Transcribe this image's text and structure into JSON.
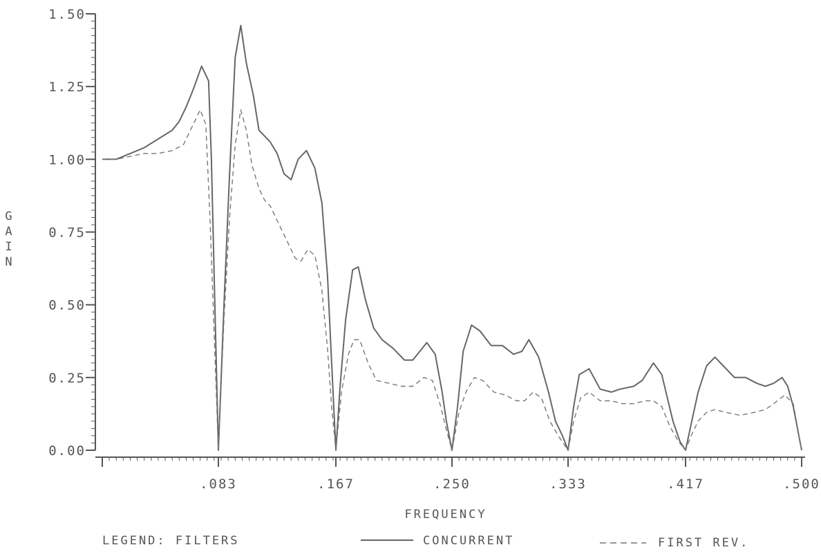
{
  "chart_data": {
    "type": "line",
    "xlabel": "FREQUENCY",
    "ylabel": "GAIN",
    "xlim": [
      0,
      0.5
    ],
    "ylim": [
      0,
      1.5
    ],
    "x_ticks": [
      {
        "value": 0.083,
        "label": ".083"
      },
      {
        "value": 0.167,
        "label": ".167"
      },
      {
        "value": 0.25,
        "label": ".250"
      },
      {
        "value": 0.333,
        "label": ".333"
      },
      {
        "value": 0.417,
        "label": ".417"
      },
      {
        "value": 0.5,
        "label": ".500"
      }
    ],
    "y_ticks": [
      {
        "value": 0.0,
        "label": "0.00"
      },
      {
        "value": 0.25,
        "label": "0.25"
      },
      {
        "value": 0.5,
        "label": "0.50"
      },
      {
        "value": 0.75,
        "label": "0.75"
      },
      {
        "value": 1.0,
        "label": "1.00"
      },
      {
        "value": 1.25,
        "label": "1.25"
      },
      {
        "value": 1.5,
        "label": "1.50"
      }
    ],
    "legend": {
      "title": "LEGEND: FILTERS",
      "placement": "bottom"
    },
    "series": [
      {
        "name": "CONCURRENT",
        "style": "solid",
        "color": "#666666",
        "points": [
          [
            0.0,
            1.0
          ],
          [
            0.01,
            1.0
          ],
          [
            0.02,
            1.02
          ],
          [
            0.03,
            1.04
          ],
          [
            0.04,
            1.07
          ],
          [
            0.05,
            1.1
          ],
          [
            0.055,
            1.13
          ],
          [
            0.06,
            1.18
          ],
          [
            0.065,
            1.24
          ],
          [
            0.071,
            1.32
          ],
          [
            0.076,
            1.27
          ],
          [
            0.078,
            1.0
          ],
          [
            0.08,
            0.6
          ],
          [
            0.083,
            0.0
          ],
          [
            0.087,
            0.5
          ],
          [
            0.091,
            0.95
          ],
          [
            0.095,
            1.35
          ],
          [
            0.099,
            1.46
          ],
          [
            0.103,
            1.33
          ],
          [
            0.108,
            1.22
          ],
          [
            0.112,
            1.1
          ],
          [
            0.116,
            1.08
          ],
          [
            0.12,
            1.06
          ],
          [
            0.125,
            1.02
          ],
          [
            0.13,
            0.95
          ],
          [
            0.135,
            0.93
          ],
          [
            0.14,
            1.0
          ],
          [
            0.146,
            1.03
          ],
          [
            0.152,
            0.97
          ],
          [
            0.157,
            0.85
          ],
          [
            0.161,
            0.6
          ],
          [
            0.164,
            0.3
          ],
          [
            0.167,
            0.0
          ],
          [
            0.17,
            0.22
          ],
          [
            0.174,
            0.45
          ],
          [
            0.179,
            0.62
          ],
          [
            0.183,
            0.63
          ],
          [
            0.188,
            0.52
          ],
          [
            0.194,
            0.42
          ],
          [
            0.2,
            0.38
          ],
          [
            0.208,
            0.35
          ],
          [
            0.216,
            0.31
          ],
          [
            0.222,
            0.31
          ],
          [
            0.232,
            0.37
          ],
          [
            0.238,
            0.33
          ],
          [
            0.243,
            0.2
          ],
          [
            0.246,
            0.1
          ],
          [
            0.25,
            0.0
          ],
          [
            0.254,
            0.15
          ],
          [
            0.258,
            0.34
          ],
          [
            0.264,
            0.43
          ],
          [
            0.27,
            0.41
          ],
          [
            0.278,
            0.36
          ],
          [
            0.286,
            0.36
          ],
          [
            0.294,
            0.33
          ],
          [
            0.3,
            0.34
          ],
          [
            0.305,
            0.38
          ],
          [
            0.312,
            0.32
          ],
          [
            0.319,
            0.2
          ],
          [
            0.324,
            0.1
          ],
          [
            0.329,
            0.05
          ],
          [
            0.333,
            0.0
          ],
          [
            0.337,
            0.15
          ],
          [
            0.341,
            0.26
          ],
          [
            0.348,
            0.28
          ],
          [
            0.356,
            0.21
          ],
          [
            0.364,
            0.2
          ],
          [
            0.37,
            0.21
          ],
          [
            0.38,
            0.22
          ],
          [
            0.386,
            0.24
          ],
          [
            0.394,
            0.3
          ],
          [
            0.4,
            0.26
          ],
          [
            0.404,
            0.18
          ],
          [
            0.408,
            0.1
          ],
          [
            0.413,
            0.03
          ],
          [
            0.417,
            0.0
          ],
          [
            0.421,
            0.09
          ],
          [
            0.426,
            0.2
          ],
          [
            0.432,
            0.29
          ],
          [
            0.438,
            0.32
          ],
          [
            0.444,
            0.29
          ],
          [
            0.452,
            0.25
          ],
          [
            0.46,
            0.25
          ],
          [
            0.468,
            0.23
          ],
          [
            0.474,
            0.22
          ],
          [
            0.48,
            0.23
          ],
          [
            0.486,
            0.25
          ],
          [
            0.49,
            0.22
          ],
          [
            0.494,
            0.15
          ],
          [
            0.5,
            0.0
          ]
        ]
      },
      {
        "name": "FIRST REV.",
        "style": "dashed",
        "color": "#777777",
        "points": [
          [
            0.0,
            1.0
          ],
          [
            0.01,
            1.0
          ],
          [
            0.02,
            1.01
          ],
          [
            0.03,
            1.02
          ],
          [
            0.04,
            1.02
          ],
          [
            0.05,
            1.03
          ],
          [
            0.058,
            1.05
          ],
          [
            0.065,
            1.12
          ],
          [
            0.07,
            1.17
          ],
          [
            0.074,
            1.12
          ],
          [
            0.077,
            0.8
          ],
          [
            0.08,
            0.4
          ],
          [
            0.083,
            0.0
          ],
          [
            0.087,
            0.45
          ],
          [
            0.091,
            0.8
          ],
          [
            0.095,
            1.05
          ],
          [
            0.099,
            1.17
          ],
          [
            0.103,
            1.1
          ],
          [
            0.107,
            0.98
          ],
          [
            0.112,
            0.9
          ],
          [
            0.116,
            0.86
          ],
          [
            0.12,
            0.84
          ],
          [
            0.126,
            0.78
          ],
          [
            0.132,
            0.72
          ],
          [
            0.138,
            0.66
          ],
          [
            0.142,
            0.65
          ],
          [
            0.147,
            0.69
          ],
          [
            0.152,
            0.67
          ],
          [
            0.157,
            0.55
          ],
          [
            0.161,
            0.35
          ],
          [
            0.164,
            0.15
          ],
          [
            0.167,
            0.0
          ],
          [
            0.171,
            0.2
          ],
          [
            0.176,
            0.33
          ],
          [
            0.18,
            0.38
          ],
          [
            0.184,
            0.38
          ],
          [
            0.19,
            0.3
          ],
          [
            0.196,
            0.24
          ],
          [
            0.205,
            0.23
          ],
          [
            0.214,
            0.22
          ],
          [
            0.222,
            0.22
          ],
          [
            0.23,
            0.25
          ],
          [
            0.236,
            0.24
          ],
          [
            0.242,
            0.15
          ],
          [
            0.246,
            0.07
          ],
          [
            0.25,
            0.0
          ],
          [
            0.255,
            0.13
          ],
          [
            0.26,
            0.2
          ],
          [
            0.266,
            0.25
          ],
          [
            0.272,
            0.24
          ],
          [
            0.28,
            0.2
          ],
          [
            0.288,
            0.19
          ],
          [
            0.296,
            0.17
          ],
          [
            0.302,
            0.17
          ],
          [
            0.308,
            0.2
          ],
          [
            0.314,
            0.18
          ],
          [
            0.32,
            0.1
          ],
          [
            0.326,
            0.05
          ],
          [
            0.333,
            0.0
          ],
          [
            0.337,
            0.1
          ],
          [
            0.342,
            0.18
          ],
          [
            0.348,
            0.2
          ],
          [
            0.356,
            0.17
          ],
          [
            0.364,
            0.17
          ],
          [
            0.372,
            0.16
          ],
          [
            0.38,
            0.16
          ],
          [
            0.388,
            0.17
          ],
          [
            0.394,
            0.17
          ],
          [
            0.4,
            0.15
          ],
          [
            0.406,
            0.08
          ],
          [
            0.412,
            0.03
          ],
          [
            0.417,
            0.0
          ],
          [
            0.421,
            0.05
          ],
          [
            0.426,
            0.1
          ],
          [
            0.432,
            0.13
          ],
          [
            0.438,
            0.14
          ],
          [
            0.446,
            0.13
          ],
          [
            0.456,
            0.12
          ],
          [
            0.466,
            0.13
          ],
          [
            0.474,
            0.14
          ],
          [
            0.48,
            0.16
          ],
          [
            0.488,
            0.19
          ],
          [
            0.494,
            0.16
          ],
          [
            0.5,
            0.0
          ]
        ]
      }
    ]
  }
}
